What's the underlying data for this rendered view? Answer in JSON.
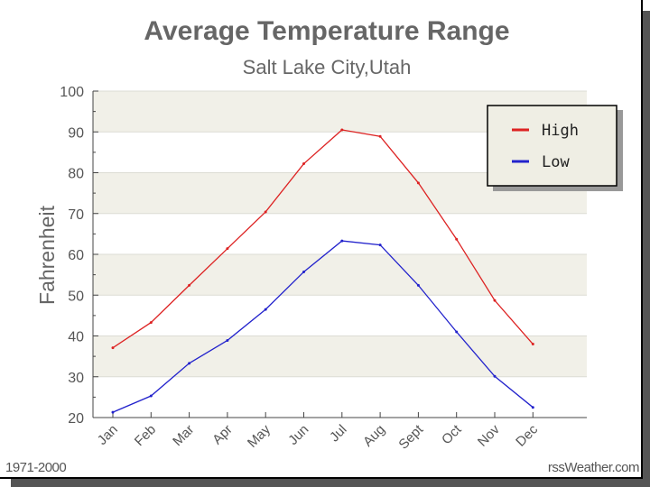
{
  "chart_data": {
    "type": "line",
    "title": "Average Temperature Range",
    "subtitle": "Salt Lake City,Utah",
    "xlabel": "",
    "ylabel": "Fahrenheit",
    "categories": [
      "Jan",
      "Feb",
      "Mar",
      "Apr",
      "May",
      "Jun",
      "Jul",
      "Aug",
      "Sept",
      "Oct",
      "Nov",
      "Dec"
    ],
    "ylim": [
      20,
      100
    ],
    "yticks": [
      "20",
      "30",
      "40",
      "50",
      "60",
      "70",
      "80",
      "90",
      "100"
    ],
    "grid": true,
    "legend_position": "top-right",
    "series": [
      {
        "name": "High",
        "color": "#dd2222",
        "values": [
          37.1,
          43.3,
          52.4,
          61.4,
          70.4,
          82.2,
          90.5,
          88.9,
          77.5,
          63.7,
          48.7,
          38.0
        ]
      },
      {
        "name": "Low",
        "color": "#2222cc",
        "values": [
          21.3,
          25.3,
          33.3,
          38.9,
          46.5,
          55.7,
          63.3,
          62.3,
          52.4,
          41.0,
          30.1,
          22.5
        ]
      }
    ]
  },
  "footer": {
    "left": "1971-2000",
    "right": "rssWeather.com"
  }
}
